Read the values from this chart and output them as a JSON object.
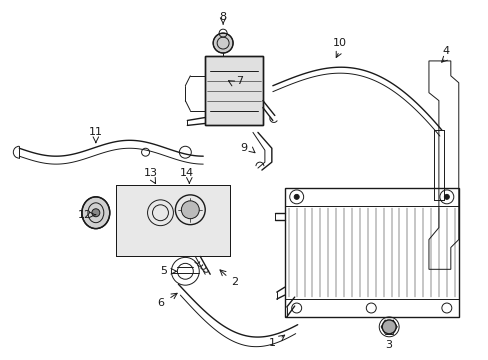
{
  "background_color": "#ffffff",
  "line_color": "#1a1a1a",
  "fig_width": 4.89,
  "fig_height": 3.6,
  "dpi": 100,
  "label_fontsize": 8.0
}
